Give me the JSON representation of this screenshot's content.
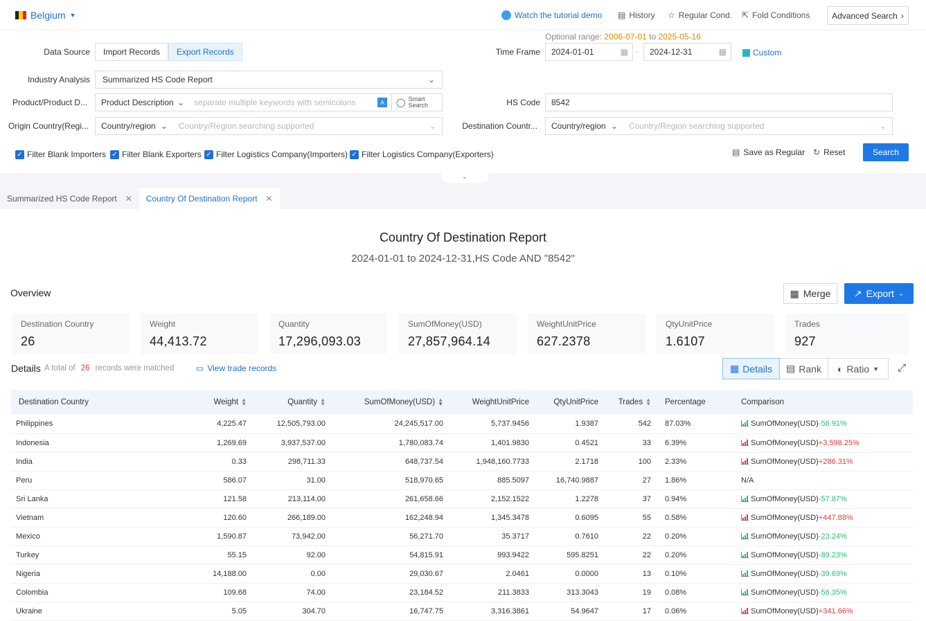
{
  "header": {
    "country": "Belgium",
    "tutorial": "Watch the tutorial demo",
    "history": "History",
    "regular": "Regular Cond.",
    "fold": "Fold Conditions",
    "advanced": "Advanced Search"
  },
  "form": {
    "data_source_label": "Data Source",
    "import": "Import Records",
    "export": "Export Records",
    "optional_range_label": "Optional range:",
    "range_start": "2006-07-01",
    "range_to": "to",
    "range_end": "2025-05-16",
    "time_frame_label": "Time Frame",
    "date_from": "2024-01-01",
    "date_to": "2024-12-31",
    "custom": "Custom",
    "industry_label": "Industry Analysis",
    "industry_value": "Summarized HS Code Report",
    "product_label": "Product/Product D...",
    "product_type": "Product Description",
    "product_placeholder": "separate multiple keywords with semicolons",
    "smart1": "Smart",
    "smart2": "Search",
    "hs_label": "HS Code",
    "hs_value": "8542",
    "origin_label": "Origin Country(Regi...",
    "origin_type": "Country/region",
    "origin_placeholder": "Country/Region searching supported",
    "dest_label": "Destination Countr...",
    "dest_type": "Country/region",
    "dest_placeholder": "Country/Region searching supported",
    "filters": [
      "Filter Blank Importers",
      "Filter Blank Exporters",
      "Filter Logistics Company(Importers)",
      "Filter Logistics Company(Exporters)"
    ],
    "save": "Save as Regular",
    "reset": "Reset",
    "search": "Search"
  },
  "tabs": [
    "Summarized HS Code Report",
    "Country Of Destination Report"
  ],
  "report": {
    "title": "Country Of Destination Report",
    "subtitle": "2024-01-01 to 2024-12-31,HS Code AND \"8542\""
  },
  "overview": {
    "label": "Overview",
    "merge": "Merge",
    "export": "Export",
    "stats": [
      {
        "k": "Destination Country",
        "v": "26"
      },
      {
        "k": "Weight",
        "v": "44,413.72"
      },
      {
        "k": "Quantity",
        "v": "17,296,093.03"
      },
      {
        "k": "SumOfMoney(USD)",
        "v": "27,857,964.14"
      },
      {
        "k": "WeightUnitPrice",
        "v": "627.2378"
      },
      {
        "k": "QtyUnitPrice",
        "v": "1.6107"
      },
      {
        "k": "Trades",
        "v": "927"
      }
    ]
  },
  "details": {
    "label": "Details",
    "total_pre": "A total of",
    "total": "26",
    "total_post": "records were matched",
    "view": "View trade records",
    "btn_details": "Details",
    "btn_rank": "Rank",
    "btn_ratio": "Ratio"
  },
  "table": {
    "headers": [
      "Destination Country",
      "Weight",
      "Quantity",
      "SumOfMoney(USD)",
      "WeightUnitPrice",
      "QtyUnitPrice",
      "Trades",
      "Percentage",
      "Comparison"
    ],
    "rows": [
      [
        "Philippines",
        "4,225.47",
        "12,505,793.00",
        "24,245,517.00",
        "5,737.9456",
        "1.9387",
        "542",
        "87.03%",
        "SumOfMoney(USD)",
        "-56.91%",
        "down"
      ],
      [
        "Indonesia",
        "1,269.69",
        "3,937,537.00",
        "1,780,083.74",
        "1,401.9830",
        "0.4521",
        "33",
        "6.39%",
        "SumOfMoney(USD)",
        "+3,598.25%",
        "up"
      ],
      [
        "India",
        "0.33",
        "298,711.33",
        "648,737.54",
        "1,948,160.7733",
        "2.1718",
        "100",
        "2.33%",
        "SumOfMoney(USD)",
        "+286.31%",
        "up"
      ],
      [
        "Peru",
        "586.07",
        "31.00",
        "518,970.65",
        "885.5097",
        "16,740.9887",
        "27",
        "1.86%",
        "N/A",
        "",
        ""
      ],
      [
        "Sri Lanka",
        "121.58",
        "213,114.00",
        "261,658.66",
        "2,152.1522",
        "1.2278",
        "37",
        "0.94%",
        "SumOfMoney(USD)",
        "-57.87%",
        "down"
      ],
      [
        "Vietnam",
        "120.60",
        "266,189.00",
        "162,248.94",
        "1,345.3478",
        "0.6095",
        "55",
        "0.58%",
        "SumOfMoney(USD)",
        "+447.88%",
        "up"
      ],
      [
        "Mexico",
        "1,590.87",
        "73,942.00",
        "56,271.70",
        "35.3717",
        "0.7610",
        "22",
        "0.20%",
        "SumOfMoney(USD)",
        "-23.24%",
        "down"
      ],
      [
        "Turkey",
        "55.15",
        "92.00",
        "54,815.91",
        "993.9422",
        "595.8251",
        "22",
        "0.20%",
        "SumOfMoney(USD)",
        "-89.23%",
        "down"
      ],
      [
        "Nigeria",
        "14,188.00",
        "0.00",
        "29,030.67",
        "2.0461",
        "0.0000",
        "13",
        "0.10%",
        "SumOfMoney(USD)",
        "-39.69%",
        "down"
      ],
      [
        "Colombia",
        "109.68",
        "74.00",
        "23,184.52",
        "211.3833",
        "313.3043",
        "19",
        "0.08%",
        "SumOfMoney(USD)",
        "-56.35%",
        "down"
      ],
      [
        "Ukraine",
        "5.05",
        "304.70",
        "16,747.75",
        "3,316.3861",
        "54.9647",
        "17",
        "0.06%",
        "SumOfMoney(USD)",
        "+341.66%",
        "up"
      ]
    ]
  },
  "colors": {
    "accent": "#1e6fd9",
    "up": "#e23b3b",
    "down": "#2dbd74",
    "range": "#e08a00"
  }
}
